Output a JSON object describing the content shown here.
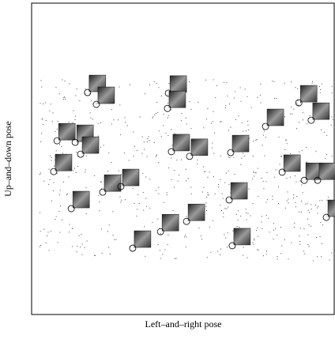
{
  "chart_data": {
    "type": "scatter",
    "x_label": "Left–and–right pose",
    "y_label": "Up–and–down pose",
    "xlim": [
      0,
      1
    ],
    "ylim": [
      0,
      1
    ],
    "x": [
      0.185,
      0.214,
      0.452,
      0.449,
      0.084,
      0.144,
      0.162,
      0.073,
      0.131,
      0.235,
      0.295,
      0.462,
      0.522,
      0.658,
      0.653,
      0.773,
      0.883,
      0.924,
      0.828,
      0.901,
      0.945,
      0.974,
      0.334,
      0.426,
      0.512,
      0.663
    ],
    "y": [
      0.713,
      0.675,
      0.711,
      0.662,
      0.558,
      0.553,
      0.515,
      0.459,
      0.34,
      0.393,
      0.411,
      0.523,
      0.508,
      0.52,
      0.368,
      0.604,
      0.68,
      0.624,
      0.457,
      0.431,
      0.431,
      0.312,
      0.213,
      0.266,
      0.299,
      0.221
    ]
  }
}
